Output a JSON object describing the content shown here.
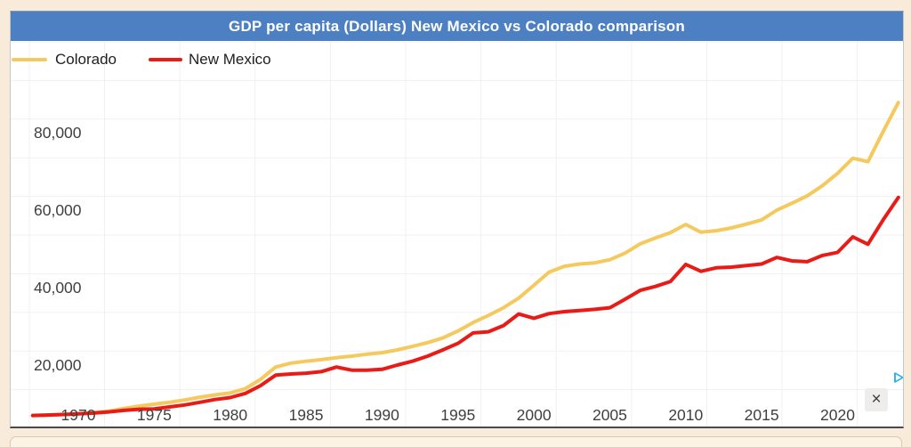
{
  "header": {
    "title": "GDP per capita (Dollars) New Mexico vs Colorado comparison"
  },
  "legend": {
    "items": [
      {
        "label": "Colorado",
        "color": "#f4c95d"
      },
      {
        "label": "New Mexico",
        "color": "#e91b17"
      }
    ]
  },
  "colors": {
    "title_bar_bg": "#4d80c2",
    "title_text": "#ffffff",
    "colorado_line": "#f4c95d",
    "new_mexico_line": "#e91b17",
    "gridline": "#f1f1f1",
    "axis_text": "#3f3f3f",
    "plot_background": "#ffffff",
    "page_background": "#f9ebd9",
    "adchoices_blue": "#2fb1e3"
  },
  "ad_overlay": {
    "close_label": "×"
  },
  "chart_data": {
    "type": "line",
    "title": "GDP per capita (Dollars) New Mexico vs Colorado comparison",
    "xlabel": "",
    "ylabel": "GDP per capita (Dollars)",
    "grid": true,
    "legend_position": "top-left",
    "xlim": [
      1966.5,
      2024.6
    ],
    "ylim": [
      0,
      92000
    ],
    "x": [
      1967,
      1968,
      1969,
      1970,
      1971,
      1972,
      1973,
      1974,
      1975,
      1976,
      1977,
      1978,
      1979,
      1980,
      1981,
      1982,
      1983,
      1984,
      1985,
      1986,
      1987,
      1988,
      1989,
      1990,
      1991,
      1992,
      1993,
      1994,
      1995,
      1996,
      1997,
      1998,
      1999,
      2000,
      2001,
      2002,
      2003,
      2004,
      2005,
      2006,
      2007,
      2008,
      2009,
      2010,
      2011,
      2012,
      2013,
      2014,
      2015,
      2016,
      2017,
      2018,
      2019,
      2020,
      2021,
      2022,
      2023,
      2024
    ],
    "series": [
      {
        "name": "Colorado",
        "color": "#f4c95d",
        "values": [
          7000,
          7100,
          7250,
          7400,
          7700,
          8100,
          8800,
          9400,
          9900,
          10400,
          11000,
          11700,
          12300,
          12800,
          13900,
          16300,
          19500,
          20500,
          21000,
          21400,
          21900,
          22300,
          22800,
          23200,
          23900,
          24800,
          25800,
          27000,
          28800,
          31000,
          32800,
          34800,
          37300,
          40600,
          44000,
          45500,
          46100,
          46400,
          47200,
          48900,
          51300,
          52800,
          54200,
          56300,
          54300,
          54700,
          55400,
          56400,
          57500,
          60000,
          61800,
          63700,
          66300,
          69500,
          73400,
          72500,
          80300,
          87800
        ]
      },
      {
        "name": "New Mexico",
        "color": "#e91b17",
        "values": [
          7000,
          7100,
          7250,
          7400,
          7600,
          7900,
          8300,
          8600,
          8700,
          9200,
          9700,
          10400,
          11100,
          11600,
          12700,
          14700,
          17400,
          17700,
          17900,
          18300,
          19500,
          18700,
          18700,
          18900,
          20000,
          21000,
          22300,
          23900,
          25600,
          28300,
          28600,
          30200,
          33200,
          32100,
          33300,
          33800,
          34100,
          34400,
          34800,
          37000,
          39300,
          40300,
          41600,
          46000,
          44200,
          45100,
          45300,
          45700,
          46100,
          47800,
          46900,
          46700,
          48300,
          49100,
          53100,
          51200,
          57500,
          63300
        ]
      }
    ],
    "x_ticks": [
      {
        "value": 1970,
        "label": "1970"
      },
      {
        "value": 1975,
        "label": "1975"
      },
      {
        "value": 1980,
        "label": "1980"
      },
      {
        "value": 1985,
        "label": "1985"
      },
      {
        "value": 1990,
        "label": "1990"
      },
      {
        "value": 1995,
        "label": "1995"
      },
      {
        "value": 2000,
        "label": "2000"
      },
      {
        "value": 2005,
        "label": "2005"
      },
      {
        "value": 2010,
        "label": "2010"
      },
      {
        "value": 2015,
        "label": "2015"
      },
      {
        "value": 2020,
        "label": "2020"
      }
    ],
    "y_ticks": [
      {
        "value": 20000,
        "label": "20,000"
      },
      {
        "value": 40000,
        "label": "40,000"
      },
      {
        "value": 60000,
        "label": "60,000"
      },
      {
        "value": 80000,
        "label": "80,000"
      }
    ]
  }
}
